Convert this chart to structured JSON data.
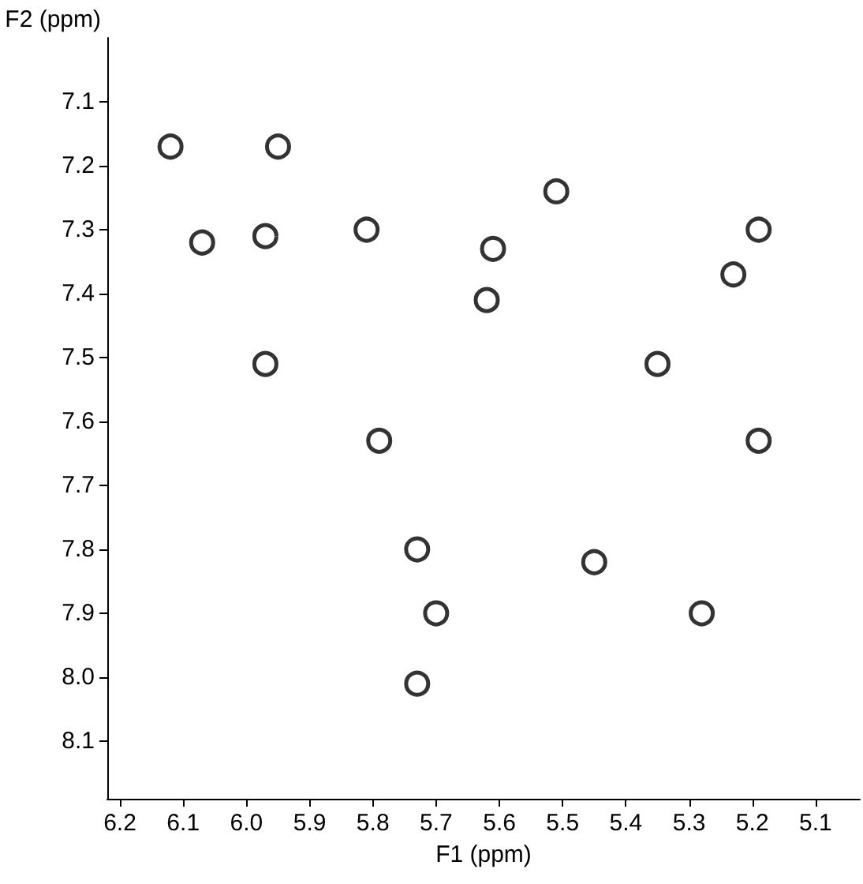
{
  "chart_data": {
    "type": "scatter",
    "xlabel": "F1 (ppm)",
    "ylabel": "F2 (ppm)",
    "xlim": [
      6.22,
      5.03
    ],
    "ylim": [
      8.19,
      7.0
    ],
    "xticks": [
      6.2,
      6.1,
      {
        "value": 6,
        "label": "6.0"
      },
      5.9,
      5.8,
      5.7,
      5.6,
      5.5,
      5.4,
      5.3,
      5.2,
      5.1
    ],
    "yticks": [
      7.1,
      7.2,
      7.3,
      7.4,
      7.5,
      7.6,
      7.7,
      7.8,
      7.9,
      {
        "value": 8,
        "label": "8.0"
      },
      8.1
    ],
    "x": [
      6.12,
      5.95,
      6.07,
      5.97,
      5.81,
      5.97,
      5.79,
      5.73,
      5.7,
      5.73,
      5.62,
      5.61,
      5.51,
      5.35,
      5.19,
      5.23,
      5.19,
      5.45,
      5.28
    ],
    "values": [
      7.17,
      7.17,
      7.32,
      7.31,
      7.3,
      7.51,
      7.63,
      7.8,
      7.9,
      8.01,
      7.41,
      7.33,
      7.24,
      7.51,
      7.3,
      7.37,
      7.63,
      7.82,
      7.9
    ],
    "color": "#000000",
    "marker": "circle",
    "grid": false
  }
}
